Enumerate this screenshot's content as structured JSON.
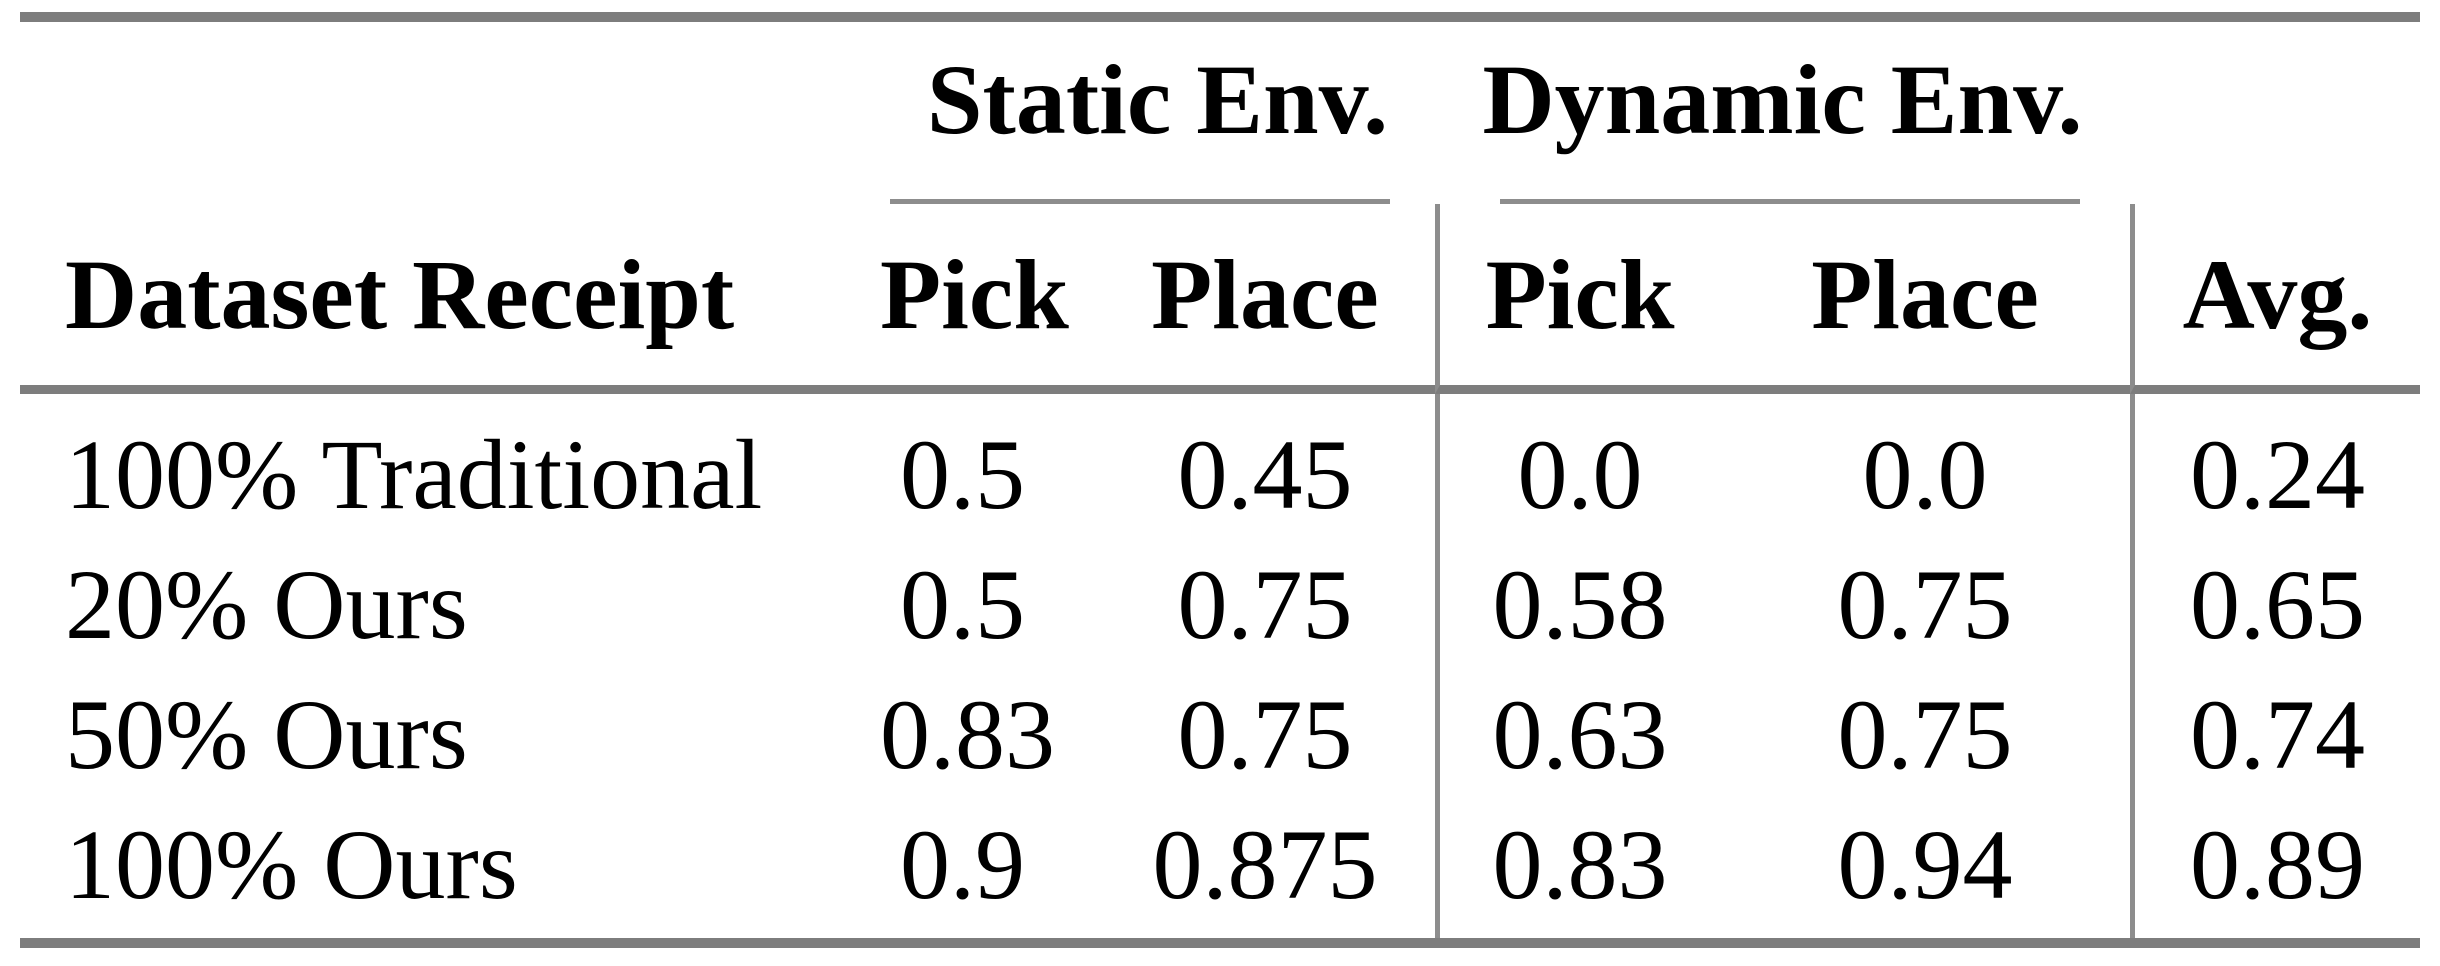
{
  "table": {
    "column_groups": [
      {
        "label": "Static Env."
      },
      {
        "label": "Dynamic Env."
      }
    ],
    "headers": {
      "row_label": "Dataset Receipt",
      "static_pick": "Pick",
      "static_place": "Place",
      "dynamic_pick": "Pick",
      "dynamic_place": "Place",
      "avg": "Avg."
    },
    "rows": [
      {
        "label": "100% Traditional",
        "static_pick": "0.5",
        "static_place": "0.45",
        "dynamic_pick": "0.0",
        "dynamic_place": "0.0",
        "avg": "0.24"
      },
      {
        "label": "20% Ours",
        "static_pick": "0.5",
        "static_place": "0.75",
        "dynamic_pick": "0.58",
        "dynamic_place": "0.75",
        "avg": "0.65"
      },
      {
        "label": "50% Ours",
        "static_pick": "0.83",
        "static_place": "0.75",
        "dynamic_pick": "0.63",
        "dynamic_place": "0.75",
        "avg": "0.74"
      },
      {
        "label": "100% Ours",
        "static_pick": "0.9",
        "static_place": "0.875",
        "dynamic_pick": "0.83",
        "dynamic_place": "0.94",
        "avg": "0.89"
      }
    ],
    "colors": {
      "rule": "#7d7d7d",
      "separator": "#8d8d8d",
      "text": "#000000",
      "background": "#ffffff"
    }
  }
}
